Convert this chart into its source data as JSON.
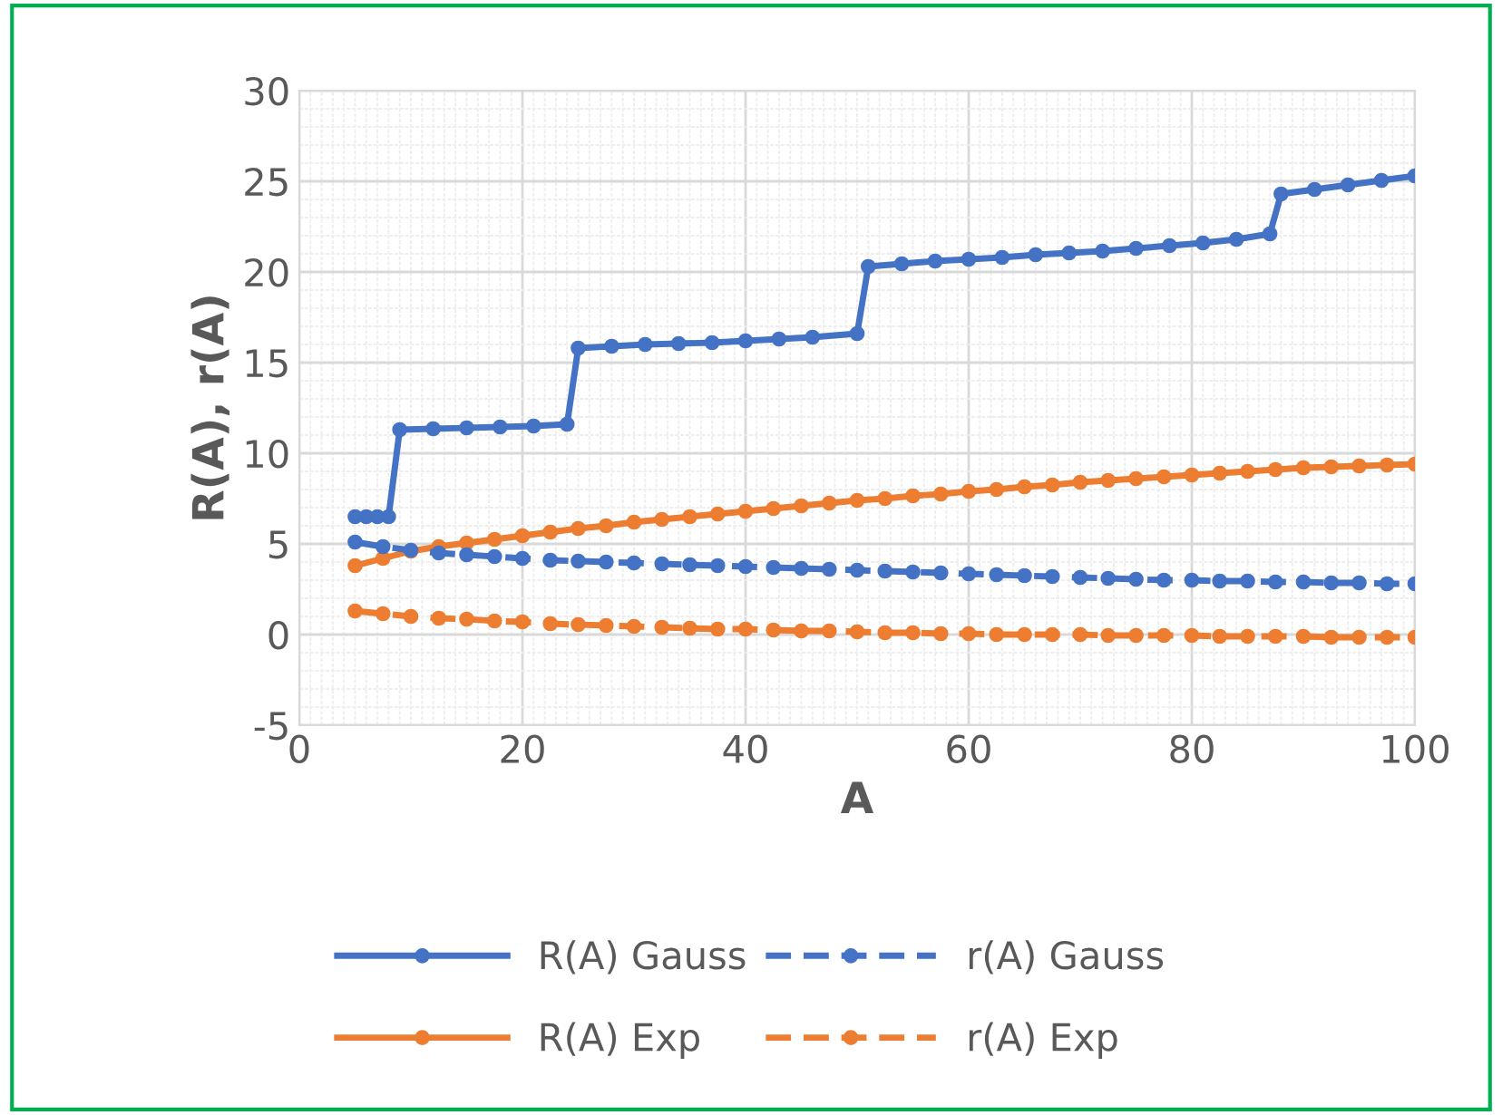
{
  "chart_data": {
    "type": "line",
    "xlabel": "A",
    "ylabel": "R(A), r(A)",
    "xlim": [
      0,
      100
    ],
    "xticks": [
      0,
      20,
      40,
      60,
      80,
      100
    ],
    "ylim": [
      -5,
      30
    ],
    "yticks": [
      -5,
      0,
      5,
      10,
      15,
      20,
      25,
      30
    ],
    "grid": true,
    "legend": "bottom",
    "marker": "circle",
    "series": [
      {
        "name": "R(A) Gauss",
        "color": "#4472c4",
        "line_style": "solid",
        "x": [
          5,
          6,
          7,
          8,
          9,
          12,
          15,
          18,
          21,
          24,
          25,
          28,
          31,
          34,
          37,
          40,
          43,
          46,
          50,
          51,
          54,
          57,
          60,
          63,
          66,
          69,
          72,
          75,
          78,
          81,
          84,
          87,
          88,
          91,
          94,
          97,
          100
        ],
        "values": [
          6.5,
          6.5,
          6.5,
          6.5,
          11.3,
          11.35,
          11.4,
          11.45,
          11.5,
          11.6,
          15.8,
          15.9,
          16.0,
          16.05,
          16.1,
          16.2,
          16.3,
          16.4,
          16.6,
          20.3,
          20.45,
          20.6,
          20.7,
          20.8,
          20.95,
          21.05,
          21.15,
          21.3,
          21.45,
          21.6,
          21.8,
          22.1,
          24.3,
          24.55,
          24.8,
          25.05,
          25.3
        ]
      },
      {
        "name": "r(A) Gauss",
        "color": "#4472c4",
        "line_style": "dashed",
        "x": [
          5,
          7.5,
          10,
          12.5,
          15,
          17.5,
          20,
          22.5,
          25,
          27.5,
          30,
          32.5,
          35,
          37.5,
          40,
          42.5,
          45,
          47.5,
          50,
          52.5,
          55,
          57.5,
          60,
          62.5,
          65,
          67.5,
          70,
          72.5,
          75,
          77.5,
          80,
          82.5,
          85,
          87.5,
          90,
          92.5,
          95,
          97.5,
          100
        ],
        "values": [
          5.1,
          4.85,
          4.65,
          4.5,
          4.4,
          4.3,
          4.2,
          4.1,
          4.05,
          4.0,
          3.95,
          3.9,
          3.85,
          3.8,
          3.75,
          3.7,
          3.65,
          3.6,
          3.55,
          3.5,
          3.45,
          3.4,
          3.35,
          3.3,
          3.25,
          3.2,
          3.15,
          3.1,
          3.05,
          3.0,
          3.0,
          2.95,
          2.95,
          2.9,
          2.9,
          2.85,
          2.85,
          2.8,
          2.8
        ]
      },
      {
        "name": "R(A) Exp",
        "color": "#ed7d31",
        "line_style": "solid",
        "x": [
          5,
          7.5,
          10,
          12.5,
          15,
          17.5,
          20,
          22.5,
          25,
          27.5,
          30,
          32.5,
          35,
          37.5,
          40,
          42.5,
          45,
          47.5,
          50,
          52.5,
          55,
          57.5,
          60,
          62.5,
          65,
          67.5,
          70,
          72.5,
          75,
          77.5,
          80,
          82.5,
          85,
          87.5,
          90,
          92.5,
          95,
          97.5,
          100
        ],
        "values": [
          3.8,
          4.2,
          4.6,
          4.85,
          5.05,
          5.25,
          5.45,
          5.65,
          5.85,
          6.0,
          6.2,
          6.35,
          6.5,
          6.65,
          6.8,
          6.95,
          7.1,
          7.25,
          7.4,
          7.5,
          7.65,
          7.75,
          7.9,
          8.0,
          8.15,
          8.25,
          8.4,
          8.5,
          8.6,
          8.7,
          8.8,
          8.9,
          9.0,
          9.1,
          9.2,
          9.25,
          9.3,
          9.35,
          9.4
        ]
      },
      {
        "name": "r(A) Exp",
        "color": "#ed7d31",
        "line_style": "dashed",
        "x": [
          5,
          7.5,
          10,
          12.5,
          15,
          17.5,
          20,
          22.5,
          25,
          27.5,
          30,
          32.5,
          35,
          37.5,
          40,
          42.5,
          45,
          47.5,
          50,
          52.5,
          55,
          57.5,
          60,
          62.5,
          65,
          67.5,
          70,
          72.5,
          75,
          77.5,
          80,
          82.5,
          85,
          87.5,
          90,
          92.5,
          95,
          97.5,
          100
        ],
        "values": [
          1.3,
          1.15,
          1.0,
          0.9,
          0.85,
          0.75,
          0.7,
          0.6,
          0.55,
          0.5,
          0.45,
          0.4,
          0.35,
          0.3,
          0.3,
          0.25,
          0.2,
          0.2,
          0.15,
          0.1,
          0.1,
          0.05,
          0.05,
          0,
          0,
          0,
          0,
          -0.05,
          -0.05,
          -0.05,
          -0.05,
          -0.1,
          -0.1,
          -0.1,
          -0.1,
          -0.15,
          -0.15,
          -0.15,
          -0.15
        ]
      }
    ]
  }
}
